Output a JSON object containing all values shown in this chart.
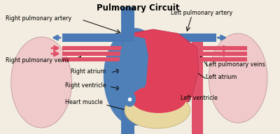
{
  "title": "Pulmonary Circuit",
  "bg_color": "#f2ede0",
  "blue_vessel": "#4a7ab5",
  "red_vessel": "#e05068",
  "lung_color": "#f0caca",
  "lung_edge": "#c8a0a0",
  "heart_red": "#e0405a",
  "heart_blue": "#5080b8",
  "heart_muscle_color": "#e8d8a0",
  "heart_outline": "#c03050",
  "label_fs": 5.8,
  "title_fs": 8.5,
  "labels": {
    "rpa": "Right pulmonary artery",
    "lpa": "Left pulmonary artery",
    "rpv": "Right pulmonary veins",
    "lpv": "Left pulmonary veins",
    "ra": "Right atrium",
    "la": "Left atrium",
    "rv": "Right ventricle",
    "lv": "Left ventricle",
    "hm": "Heart muscle"
  }
}
